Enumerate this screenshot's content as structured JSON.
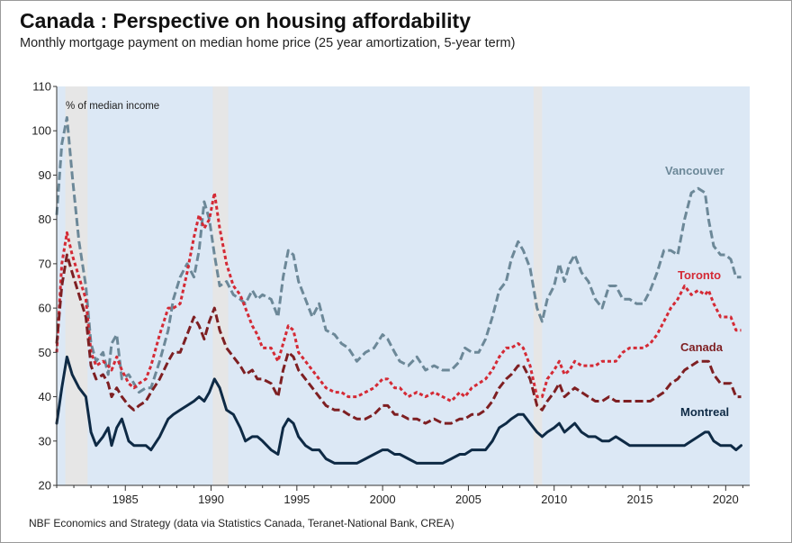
{
  "title": "Canada : Perspective on housing affordability",
  "subtitle": "Monthly mortgage payment on median home price (25 year amortization, 5-year term)",
  "source": "NBF Economics and Strategy (data via Statistics Canada, Teranet-National Bank, CREA)",
  "chart_data": {
    "type": "line",
    "ylabel": "% of median income",
    "ylim": [
      20,
      110
    ],
    "xlim": [
      1981.0,
      2021.4
    ],
    "yticks": [
      "110",
      "100",
      "90",
      "80",
      "70",
      "60",
      "50",
      "40",
      "30",
      "20"
    ],
    "xticks": [
      "1985",
      "1990",
      "1995",
      "2000",
      "2005",
      "2010",
      "2015",
      "2020"
    ],
    "grid": false,
    "legend": "inline labels at right",
    "recessions": [
      [
        1981.5,
        1982.8
      ],
      [
        1990.1,
        1991.0
      ],
      [
        2008.8,
        2009.3
      ]
    ],
    "colors": {
      "background": "#dce8f5",
      "recession": "#e6e6e6",
      "vancouver": "#6c8898",
      "toronto": "#d42a35",
      "canada": "#7e1f22",
      "montreal": "#0e2a45"
    },
    "series": [
      {
        "name": "Vancouver",
        "style": "dashed",
        "x": [
          1981.0,
          1981.3,
          1981.6,
          1981.9,
          1982.3,
          1982.7,
          1983.0,
          1983.3,
          1983.7,
          1984.0,
          1984.2,
          1984.5,
          1984.8,
          1985.2,
          1985.5,
          1985.8,
          1986.2,
          1986.5,
          1987.0,
          1987.5,
          1987.8,
          1988.2,
          1988.6,
          1989.0,
          1989.3,
          1989.6,
          1989.9,
          1990.2,
          1990.5,
          1990.9,
          1991.3,
          1991.7,
          1992.0,
          1992.4,
          1992.7,
          1993.0,
          1993.5,
          1993.9,
          1994.2,
          1994.5,
          1994.8,
          1995.1,
          1995.5,
          1995.9,
          1996.3,
          1996.7,
          1997.2,
          1997.6,
          1998.0,
          1998.5,
          1999.0,
          1999.5,
          2000.0,
          2000.3,
          2000.7,
          2001.0,
          2001.5,
          2002.0,
          2002.5,
          2003.0,
          2003.5,
          2004.0,
          2004.5,
          2004.8,
          2005.2,
          2005.6,
          2006.0,
          2006.4,
          2006.8,
          2007.2,
          2007.5,
          2007.9,
          2008.2,
          2008.6,
          2009.0,
          2009.3,
          2009.6,
          2010.0,
          2010.3,
          2010.6,
          2010.9,
          2011.2,
          2011.6,
          2012.0,
          2012.4,
          2012.8,
          2013.2,
          2013.6,
          2014.0,
          2014.4,
          2014.8,
          2015.2,
          2015.6,
          2016.0,
          2016.4,
          2016.8,
          2017.2,
          2017.6,
          2018.0,
          2018.4,
          2018.8,
          2019.0,
          2019.3,
          2019.7,
          2020.0,
          2020.3,
          2020.6,
          2020.9
        ],
        "y": [
          81,
          97,
          103,
          90,
          75,
          65,
          52,
          48,
          50,
          45,
          52,
          54,
          44,
          45,
          43,
          41,
          42,
          42,
          48,
          55,
          62,
          67,
          70,
          67,
          73,
          84,
          80,
          72,
          65,
          66,
          63,
          62,
          61,
          64,
          62,
          63,
          62,
          58,
          67,
          73,
          72,
          66,
          62,
          58,
          61,
          55,
          54,
          52,
          51,
          48,
          50,
          51,
          54,
          53,
          50,
          48,
          47,
          49,
          46,
          47,
          46,
          46,
          48,
          51,
          50,
          50,
          53,
          58,
          64,
          66,
          71,
          75,
          73,
          69,
          60,
          57,
          62,
          65,
          70,
          66,
          70,
          72,
          68,
          66,
          62,
          60,
          65,
          65,
          62,
          62,
          61,
          61,
          64,
          68,
          73,
          73,
          72,
          80,
          86,
          87,
          86,
          80,
          74,
          72,
          72,
          71,
          67,
          67
        ]
      },
      {
        "name": "Toronto",
        "style": "dotted",
        "x": [
          1981.0,
          1981.3,
          1981.6,
          1981.9,
          1982.3,
          1982.7,
          1983.0,
          1983.3,
          1983.7,
          1984.0,
          1984.2,
          1984.5,
          1984.8,
          1985.2,
          1985.5,
          1985.8,
          1986.2,
          1986.5,
          1987.0,
          1987.5,
          1987.8,
          1988.2,
          1988.6,
          1989.0,
          1989.3,
          1989.6,
          1989.9,
          1990.2,
          1990.5,
          1990.9,
          1991.3,
          1991.7,
          1992.0,
          1992.4,
          1992.7,
          1993.0,
          1993.5,
          1993.9,
          1994.2,
          1994.5,
          1994.8,
          1995.1,
          1995.5,
          1995.9,
          1996.3,
          1996.7,
          1997.2,
          1997.6,
          1998.0,
          1998.5,
          1999.0,
          1999.5,
          2000.0,
          2000.3,
          2000.7,
          2001.0,
          2001.5,
          2002.0,
          2002.5,
          2003.0,
          2003.5,
          2004.0,
          2004.5,
          2004.8,
          2005.2,
          2005.6,
          2006.0,
          2006.4,
          2006.8,
          2007.2,
          2007.5,
          2007.9,
          2008.2,
          2008.6,
          2009.0,
          2009.3,
          2009.6,
          2010.0,
          2010.3,
          2010.6,
          2010.9,
          2011.2,
          2011.6,
          2012.0,
          2012.4,
          2012.8,
          2013.2,
          2013.6,
          2014.0,
          2014.4,
          2014.8,
          2015.2,
          2015.6,
          2016.0,
          2016.4,
          2016.8,
          2017.2,
          2017.6,
          2018.0,
          2018.4,
          2018.8,
          2019.0,
          2019.3,
          2019.7,
          2020.0,
          2020.3,
          2020.6,
          2020.9
        ],
        "y": [
          50,
          70,
          77,
          72,
          67,
          62,
          50,
          47,
          48,
          47,
          46,
          49,
          46,
          43,
          42,
          43,
          44,
          47,
          54,
          60,
          60,
          61,
          68,
          76,
          81,
          78,
          80,
          86,
          78,
          70,
          65,
          63,
          60,
          56,
          54,
          51,
          51,
          48,
          52,
          56,
          55,
          50,
          48,
          46,
          44,
          42,
          41,
          41,
          40,
          40,
          41,
          42,
          44,
          44,
          42,
          42,
          40,
          41,
          40,
          41,
          40,
          39,
          41,
          40,
          42,
          43,
          44,
          46,
          49,
          51,
          51,
          52,
          51,
          47,
          40,
          40,
          44,
          46,
          48,
          45,
          46,
          48,
          47,
          47,
          47,
          48,
          48,
          48,
          50,
          51,
          51,
          51,
          52,
          54,
          57,
          60,
          62,
          65,
          63,
          64,
          63,
          64,
          61,
          58,
          58,
          58,
          55,
          55
        ]
      },
      {
        "name": "Canada",
        "style": "dashed",
        "x": [
          1981.0,
          1981.3,
          1981.6,
          1981.9,
          1982.3,
          1982.7,
          1983.0,
          1983.3,
          1983.7,
          1984.0,
          1984.2,
          1984.5,
          1984.8,
          1985.2,
          1985.5,
          1985.8,
          1986.2,
          1986.5,
          1987.0,
          1987.5,
          1987.8,
          1988.2,
          1988.6,
          1989.0,
          1989.3,
          1989.6,
          1989.9,
          1990.2,
          1990.5,
          1990.9,
          1991.3,
          1991.7,
          1992.0,
          1992.4,
          1992.7,
          1993.0,
          1993.5,
          1993.9,
          1994.2,
          1994.5,
          1994.8,
          1995.1,
          1995.5,
          1995.9,
          1996.3,
          1996.7,
          1997.2,
          1997.6,
          1998.0,
          1998.5,
          1999.0,
          1999.5,
          2000.0,
          2000.3,
          2000.7,
          2001.0,
          2001.5,
          2002.0,
          2002.5,
          2003.0,
          2003.5,
          2004.0,
          2004.5,
          2004.8,
          2005.2,
          2005.6,
          2006.0,
          2006.4,
          2006.8,
          2007.2,
          2007.5,
          2007.9,
          2008.2,
          2008.6,
          2009.0,
          2009.3,
          2009.6,
          2010.0,
          2010.3,
          2010.6,
          2010.9,
          2011.2,
          2011.6,
          2012.0,
          2012.4,
          2012.8,
          2013.2,
          2013.6,
          2014.0,
          2014.4,
          2014.8,
          2015.2,
          2015.6,
          2016.0,
          2016.4,
          2016.8,
          2017.2,
          2017.6,
          2018.0,
          2018.4,
          2018.8,
          2019.0,
          2019.3,
          2019.7,
          2020.0,
          2020.3,
          2020.6,
          2020.9
        ],
        "y": [
          52,
          65,
          72,
          68,
          63,
          58,
          47,
          44,
          45,
          43,
          40,
          42,
          40,
          38,
          37,
          38,
          39,
          41,
          44,
          48,
          50,
          50,
          54,
          58,
          56,
          53,
          57,
          60,
          55,
          51,
          49,
          47,
          45,
          46,
          44,
          44,
          43,
          40,
          46,
          50,
          49,
          46,
          44,
          42,
          40,
          38,
          37,
          37,
          36,
          35,
          35,
          36,
          38,
          38,
          36,
          36,
          35,
          35,
          34,
          35,
          34,
          34,
          35,
          35,
          36,
          36,
          37,
          39,
          42,
          44,
          45,
          47,
          47,
          44,
          38,
          37,
          39,
          41,
          43,
          40,
          41,
          42,
          41,
          40,
          39,
          39,
          40,
          39,
          39,
          39,
          39,
          39,
          39,
          40,
          41,
          43,
          44,
          46,
          47,
          48,
          48,
          48,
          45,
          43,
          43,
          43,
          40,
          40
        ]
      },
      {
        "name": "Montreal",
        "style": "solid",
        "x": [
          1981.0,
          1981.3,
          1981.6,
          1981.9,
          1982.3,
          1982.7,
          1983.0,
          1983.3,
          1983.7,
          1984.0,
          1984.2,
          1984.5,
          1984.8,
          1985.2,
          1985.5,
          1985.8,
          1986.2,
          1986.5,
          1987.0,
          1987.5,
          1987.8,
          1988.2,
          1988.6,
          1989.0,
          1989.3,
          1989.6,
          1989.9,
          1990.2,
          1990.5,
          1990.9,
          1991.3,
          1991.7,
          1992.0,
          1992.4,
          1992.7,
          1993.0,
          1993.5,
          1993.9,
          1994.2,
          1994.5,
          1994.8,
          1995.1,
          1995.5,
          1995.9,
          1996.3,
          1996.7,
          1997.2,
          1997.6,
          1998.0,
          1998.5,
          1999.0,
          1999.5,
          2000.0,
          2000.3,
          2000.7,
          2001.0,
          2001.5,
          2002.0,
          2002.5,
          2003.0,
          2003.5,
          2004.0,
          2004.5,
          2004.8,
          2005.2,
          2005.6,
          2006.0,
          2006.4,
          2006.8,
          2007.2,
          2007.5,
          2007.9,
          2008.2,
          2008.6,
          2009.0,
          2009.3,
          2009.6,
          2010.0,
          2010.3,
          2010.6,
          2010.9,
          2011.2,
          2011.6,
          2012.0,
          2012.4,
          2012.8,
          2013.2,
          2013.6,
          2014.0,
          2014.4,
          2014.8,
          2015.2,
          2015.6,
          2016.0,
          2016.4,
          2016.8,
          2017.2,
          2017.6,
          2018.0,
          2018.4,
          2018.8,
          2019.0,
          2019.3,
          2019.7,
          2020.0,
          2020.3,
          2020.6,
          2020.9
        ],
        "y": [
          34,
          42,
          49,
          45,
          42,
          40,
          32,
          29,
          31,
          33,
          29,
          33,
          35,
          30,
          29,
          29,
          29,
          28,
          31,
          35,
          36,
          37,
          38,
          39,
          40,
          39,
          41,
          44,
          42,
          37,
          36,
          33,
          30,
          31,
          31,
          30,
          28,
          27,
          33,
          35,
          34,
          31,
          29,
          28,
          28,
          26,
          25,
          25,
          25,
          25,
          26,
          27,
          28,
          28,
          27,
          27,
          26,
          25,
          25,
          25,
          25,
          26,
          27,
          27,
          28,
          28,
          28,
          30,
          33,
          34,
          35,
          36,
          36,
          34,
          32,
          31,
          32,
          33,
          34,
          32,
          33,
          34,
          32,
          31,
          31,
          30,
          30,
          31,
          30,
          29,
          29,
          29,
          29,
          29,
          29,
          29,
          29,
          29,
          30,
          31,
          32,
          32,
          30,
          29,
          29,
          29,
          28,
          29
        ]
      }
    ]
  }
}
